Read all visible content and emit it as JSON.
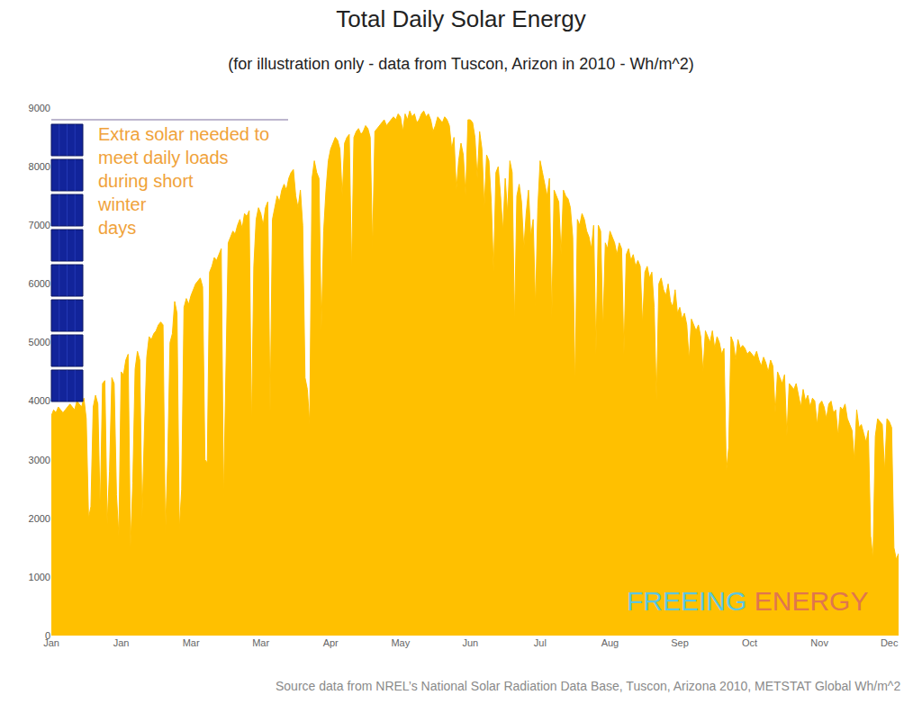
{
  "chart_data": {
    "type": "area",
    "title": "Total Daily Solar Energy",
    "subtitle": "(for illustration only - data from Tuscon, Arizon in 2010 - Wh/m^2)",
    "annotation": [
      "Extra solar needed to",
      "meet daily loads",
      "during short",
      "winter",
      "days"
    ],
    "target_line": 8800,
    "source": "Source data from NREL’s National Solar Radiation Data Base, Tuscon, Arizona 2010, METSTAT Global Wh/m^2",
    "watermark": [
      "FREEING",
      "ENERGY"
    ],
    "color": "#FFC000",
    "grid": false,
    "ylim": [
      0,
      9000
    ],
    "yticks": [
      0,
      1000,
      2000,
      3000,
      4000,
      5000,
      6000,
      7000,
      8000,
      9000
    ],
    "categories": [
      "Jan",
      null,
      null,
      null,
      null,
      null,
      null,
      null,
      null,
      null,
      null,
      null,
      null,
      null,
      null,
      null,
      null,
      null,
      null,
      null,
      null,
      null,
      null,
      null,
      null,
      null,
      null,
      null,
      null,
      null,
      "Jan",
      null,
      null,
      null,
      null,
      null,
      null,
      null,
      null,
      null,
      null,
      null,
      null,
      null,
      null,
      null,
      null,
      null,
      null,
      null,
      null,
      null,
      null,
      null,
      null,
      null,
      null,
      null,
      null,
      null,
      "Mar",
      null,
      null,
      null,
      null,
      null,
      null,
      null,
      null,
      null,
      null,
      null,
      null,
      null,
      null,
      null,
      null,
      null,
      null,
      null,
      null,
      null,
      null,
      null,
      null,
      null,
      null,
      null,
      null,
      null,
      "Mar",
      null,
      null,
      null,
      null,
      null,
      null,
      null,
      null,
      null,
      null,
      null,
      null,
      null,
      null,
      null,
      null,
      null,
      null,
      null,
      null,
      null,
      null,
      null,
      null,
      null,
      null,
      null,
      null,
      null,
      "Apr",
      null,
      null,
      null,
      null,
      null,
      null,
      null,
      null,
      null,
      null,
      null,
      null,
      null,
      null,
      null,
      null,
      null,
      null,
      null,
      null,
      null,
      null,
      null,
      null,
      null,
      null,
      null,
      null,
      null,
      "May",
      null,
      null,
      null,
      null,
      null,
      null,
      null,
      null,
      null,
      null,
      null,
      null,
      null,
      null,
      null,
      null,
      null,
      null,
      null,
      null,
      null,
      null,
      null,
      null,
      null,
      null,
      null,
      null,
      null,
      "Jun",
      null,
      null,
      null,
      null,
      null,
      null,
      null,
      null,
      null,
      null,
      null,
      null,
      null,
      null,
      null,
      null,
      null,
      null,
      null,
      null,
      null,
      null,
      null,
      null,
      null,
      null,
      null,
      null,
      null,
      "Jul",
      null,
      null,
      null,
      null,
      null,
      null,
      null,
      null,
      null,
      null,
      null,
      null,
      null,
      null,
      null,
      null,
      null,
      null,
      null,
      null,
      null,
      null,
      null,
      null,
      null,
      null,
      null,
      null,
      null,
      "Aug",
      null,
      null,
      null,
      null,
      null,
      null,
      null,
      null,
      null,
      null,
      null,
      null,
      null,
      null,
      null,
      null,
      null,
      null,
      null,
      null,
      null,
      null,
      null,
      null,
      null,
      null,
      null,
      null,
      null,
      "Sep",
      null,
      null,
      null,
      null,
      null,
      null,
      null,
      null,
      null,
      null,
      null,
      null,
      null,
      null,
      null,
      null,
      null,
      null,
      null,
      null,
      null,
      null,
      null,
      null,
      null,
      null,
      null,
      null,
      null,
      "Oct",
      null,
      null,
      null,
      null,
      null,
      null,
      null,
      null,
      null,
      null,
      null,
      null,
      null,
      null,
      null,
      null,
      null,
      null,
      null,
      null,
      null,
      null,
      null,
      null,
      null,
      null,
      null,
      null,
      null,
      "Nov",
      null,
      null,
      null,
      null,
      null,
      null,
      null,
      null,
      null,
      null,
      null,
      null,
      null,
      null,
      null,
      null,
      null,
      null,
      null,
      null,
      null,
      null,
      null,
      null,
      null,
      null,
      null,
      null,
      null,
      "Dec",
      null,
      null,
      null,
      null
    ],
    "values": [
      3750,
      3850,
      3800,
      3900,
      3850,
      3800,
      3850,
      3900,
      3950,
      3900,
      3850,
      4000,
      3950,
      3900,
      4050,
      3700,
      2000,
      2200,
      3900,
      4100,
      3950,
      2100,
      4300,
      4350,
      1900,
      2800,
      4400,
      4300,
      2400,
      1700,
      4500,
      4450,
      4700,
      4800,
      1500,
      2600,
      4550,
      4850,
      4700,
      2000,
      3500,
      4750,
      5100,
      5050,
      5150,
      5200,
      5300,
      5350,
      5300,
      1700,
      3000,
      5000,
      5150,
      5700,
      5500,
      1800,
      2500,
      5600,
      5750,
      5650,
      5800,
      5900,
      6000,
      6050,
      6100,
      5950,
      3000,
      2950,
      6200,
      6300,
      6450,
      6400,
      6500,
      6600,
      2300,
      4800,
      6700,
      6800,
      6900,
      6850,
      7000,
      7100,
      6950,
      7200,
      7150,
      7250,
      3500,
      6300,
      7100,
      7300,
      7200,
      7000,
      7300,
      7400,
      3800,
      7100,
      7300,
      7500,
      7400,
      7600,
      7700,
      7600,
      7800,
      7900,
      7950,
      7500,
      7300,
      7600,
      7000,
      4400,
      4200,
      3600,
      7800,
      8100,
      7900,
      7800,
      5200,
      6900,
      7600,
      8100,
      8300,
      8400,
      8500,
      8450,
      8300,
      7500,
      8400,
      8500,
      8550,
      6200,
      8500,
      8600,
      8650,
      8550,
      8600,
      8700,
      8650,
      8500,
      6600,
      8600,
      8650,
      8700,
      8750,
      8800,
      8700,
      8750,
      8800,
      8850,
      8800,
      8900,
      8850,
      8600,
      8900,
      8800,
      8950,
      8850,
      8900,
      8750,
      8800,
      8900,
      8950,
      8850,
      8900,
      8800,
      8600,
      8700,
      8850,
      8800,
      8750,
      8850,
      8800,
      8700,
      8300,
      8500,
      7600,
      8100,
      8400,
      8200,
      7500,
      8800,
      8800,
      8750,
      8500,
      7800,
      8600,
      8300,
      7300,
      8200,
      8100,
      7400,
      6200,
      7900,
      8000,
      7500,
      6900,
      7800,
      7200,
      8100,
      7900,
      5300,
      7500,
      7700,
      7400,
      6600,
      7200,
      7600,
      6800,
      7100,
      5600,
      7300,
      8100,
      7900,
      7700,
      7500,
      7800,
      5400,
      7600,
      7500,
      7400,
      6500,
      7600,
      7500,
      7450,
      7300,
      6800,
      4200,
      7100,
      7000,
      7200,
      7100,
      6900,
      6800,
      6600,
      7000,
      4800,
      7000,
      6900,
      5200,
      6700,
      6600,
      6900,
      6800,
      6700,
      6500,
      6700,
      6600,
      4800,
      6500,
      6600,
      6400,
      6500,
      6300,
      6400,
      6300,
      5300,
      6200,
      6300,
      6100,
      6200,
      5600,
      4000,
      6000,
      6100,
      5900,
      5800,
      6000,
      5700,
      5600,
      5900,
      5500,
      5600,
      5400,
      5500,
      5300,
      4700,
      5400,
      5300,
      5200,
      5300,
      5100,
      4500,
      5200,
      5100,
      5000,
      5200,
      4900,
      5100,
      5000,
      4800,
      4900,
      2800,
      3200,
      5100,
      5000,
      4700,
      5050,
      4900,
      4950,
      4900,
      4800,
      4850,
      4800,
      4750,
      4850,
      4700,
      4600,
      4750,
      4650,
      4500,
      4700,
      4600,
      3800,
      4500,
      4400,
      4300,
      4450,
      3400,
      4300,
      4250,
      4200,
      4300,
      4100,
      3900,
      4200,
      4000,
      4100,
      3900,
      4050,
      4000,
      3600,
      3950,
      4000,
      3900,
      3700,
      3950,
      4000,
      3800,
      3850,
      3400,
      3900,
      3850,
      3950,
      3700,
      3600,
      3500,
      3000,
      3850,
      3550,
      3600,
      3450,
      3300,
      3500,
      1700,
      1300,
      3400,
      3700,
      3650,
      3600,
      2800,
      3700,
      3650,
      3550,
      1500,
      1300,
      1400
    ]
  }
}
